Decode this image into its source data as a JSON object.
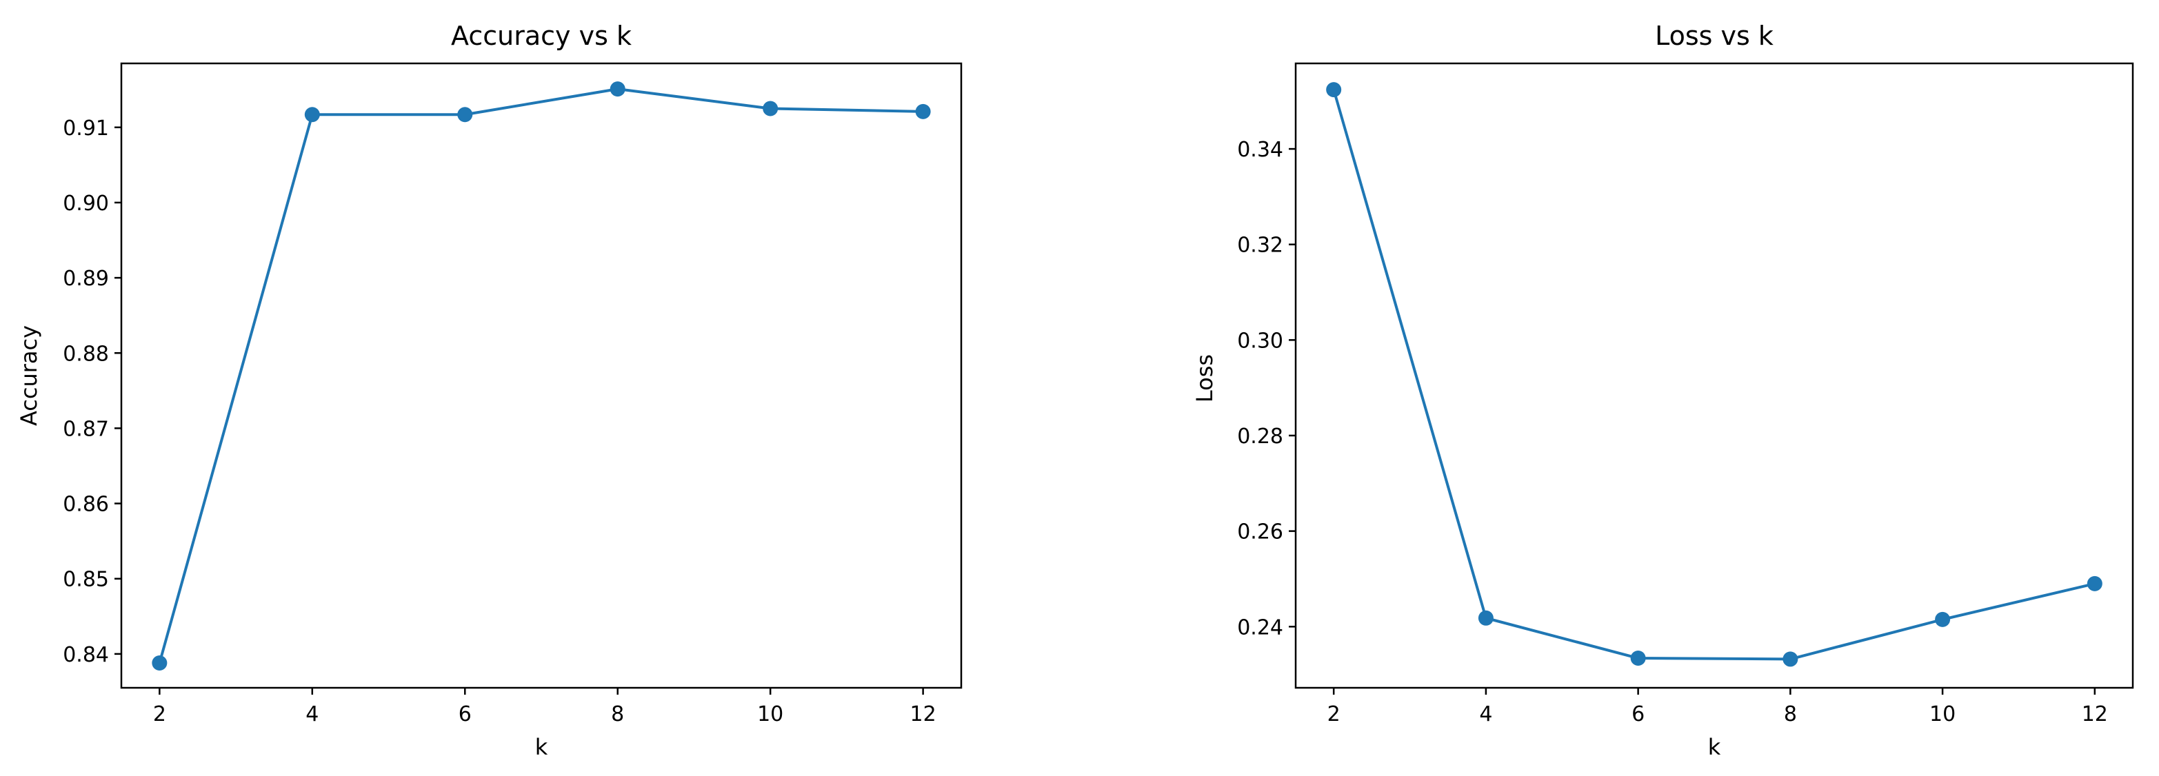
{
  "chart_data": [
    {
      "type": "line",
      "title": "Accuracy vs k",
      "xlabel": "k",
      "ylabel": "Accuracy",
      "x": [
        2,
        4,
        6,
        8,
        10,
        12
      ],
      "xticks": [
        2,
        4,
        6,
        8,
        10,
        12
      ],
      "xtick_labels": [
        "2",
        "4",
        "6",
        "8",
        "10",
        "12"
      ],
      "yticks": [
        0.84,
        0.85,
        0.86,
        0.87,
        0.88,
        0.89,
        0.9,
        0.91
      ],
      "ytick_labels": [
        "0.84",
        "0.85",
        "0.86",
        "0.87",
        "0.88",
        "0.89",
        "0.90",
        "0.91"
      ],
      "xlim": [
        1.5,
        12.5
      ],
      "ylim": [
        0.8355,
        0.9185
      ],
      "grid": false,
      "series": [
        {
          "values": [
            0.8388,
            0.9117,
            0.9117,
            0.9151,
            0.9125,
            0.9121
          ],
          "color": "#1f77b4",
          "marker": "circle"
        }
      ]
    },
    {
      "type": "line",
      "title": "Loss vs k",
      "xlabel": "k",
      "ylabel": "Loss",
      "x": [
        2,
        4,
        6,
        8,
        10,
        12
      ],
      "xticks": [
        2,
        4,
        6,
        8,
        10,
        12
      ],
      "xtick_labels": [
        "2",
        "4",
        "6",
        "8",
        "10",
        "12"
      ],
      "yticks": [
        0.24,
        0.26,
        0.28,
        0.3,
        0.32,
        0.34
      ],
      "ytick_labels": [
        "0.24",
        "0.26",
        "0.28",
        "0.30",
        "0.32",
        "0.34"
      ],
      "xlim": [
        1.5,
        12.5
      ],
      "ylim": [
        0.2272,
        0.3579
      ],
      "grid": false,
      "series": [
        {
          "values": [
            0.3524,
            0.2418,
            0.2334,
            0.2332,
            0.2415,
            0.249
          ],
          "color": "#1f77b4",
          "marker": "circle"
        }
      ]
    }
  ]
}
